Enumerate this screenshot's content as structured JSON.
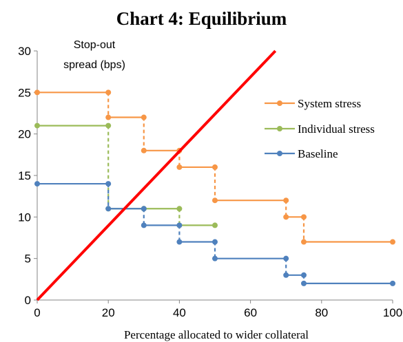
{
  "chart_data": {
    "type": "line",
    "title": "Chart 4: Equilibrium",
    "xlabel": "Percentage allocated to wider collateral",
    "ylabel": "Stop-out spread (bps)",
    "xlim": [
      0,
      100
    ],
    "ylim": [
      0,
      30
    ],
    "xticks": [
      0,
      20,
      40,
      60,
      80,
      100
    ],
    "yticks": [
      0,
      5,
      10,
      15,
      20,
      25,
      30
    ],
    "grid": false,
    "legend_position": "right",
    "series": [
      {
        "name": "System stress",
        "color": "#F79646",
        "steps": [
          {
            "x": [
              0,
              20
            ],
            "y": 25
          },
          {
            "x": [
              20,
              30
            ],
            "y": 22
          },
          {
            "x": [
              30,
              40
            ],
            "y": 18
          },
          {
            "x": [
              40,
              50
            ],
            "y": 16
          },
          {
            "x": [
              50,
              70
            ],
            "y": 12
          },
          {
            "x": [
              70,
              75
            ],
            "y": 10
          },
          {
            "x": [
              75,
              100
            ],
            "y": 7
          }
        ]
      },
      {
        "name": "Individual stress",
        "color": "#9BBB59",
        "steps": [
          {
            "x": [
              0,
              20
            ],
            "y": 21
          },
          {
            "x": [
              20,
              30
            ],
            "y": 11
          },
          {
            "x": [
              30,
              40
            ],
            "y": 11
          },
          {
            "x": [
              40,
              50
            ],
            "y": 9
          }
        ]
      },
      {
        "name": "Baseline",
        "color": "#4F81BD",
        "steps": [
          {
            "x": [
              0,
              20
            ],
            "y": 14
          },
          {
            "x": [
              20,
              30
            ],
            "y": 11
          },
          {
            "x": [
              30,
              40
            ],
            "y": 9
          },
          {
            "x": [
              40,
              50
            ],
            "y": 7
          },
          {
            "x": [
              50,
              70
            ],
            "y": 5
          },
          {
            "x": [
              70,
              75
            ],
            "y": 3
          },
          {
            "x": [
              75,
              100
            ],
            "y": 2
          }
        ]
      },
      {
        "name": "",
        "color": "#FF0000",
        "points": [
          [
            0,
            0
          ],
          [
            67,
            30
          ]
        ]
      }
    ]
  }
}
